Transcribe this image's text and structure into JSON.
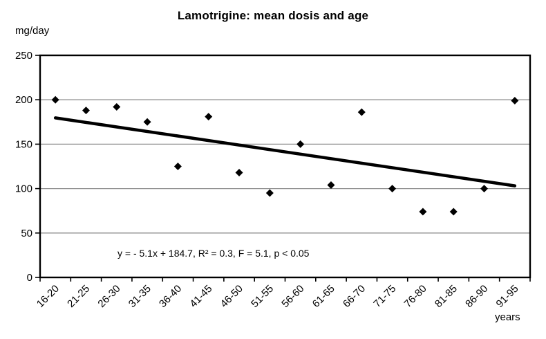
{
  "chart_data": {
    "type": "scatter",
    "title": "Lamotrigine: mean dosis and age",
    "ylabel": "mg/day",
    "xlabel": "years",
    "categories": [
      "16-20",
      "21-25",
      "26-30",
      "31-35",
      "36-40",
      "41-45",
      "46-50",
      "51-55",
      "56-60",
      "61-65",
      "66-70",
      "71-75",
      "76-80",
      "81-85",
      "86-90",
      "91-95"
    ],
    "values": [
      200,
      188,
      192,
      175,
      125,
      181,
      118,
      95,
      150,
      104,
      186,
      100,
      74,
      74,
      100,
      199
    ],
    "ylim": [
      0,
      250
    ],
    "ytick_step": 50,
    "yticks": [
      0,
      50,
      100,
      150,
      200,
      250
    ],
    "grid": "horizontal",
    "legend": "none",
    "marker": "diamond",
    "annotation": "y = - 5.1x + 184.7, R² = 0.3, F = 5.1, p < 0.05",
    "trendline": {
      "slope": -5.1,
      "intercept": 184.7,
      "x_start": 1,
      "x_end": 16
    },
    "colors": {
      "background": "#ffffff",
      "text": "#000000",
      "axis": "#000000",
      "gridline": "#8f8f8f",
      "marker": "#000000",
      "trendline": "#000000"
    }
  }
}
